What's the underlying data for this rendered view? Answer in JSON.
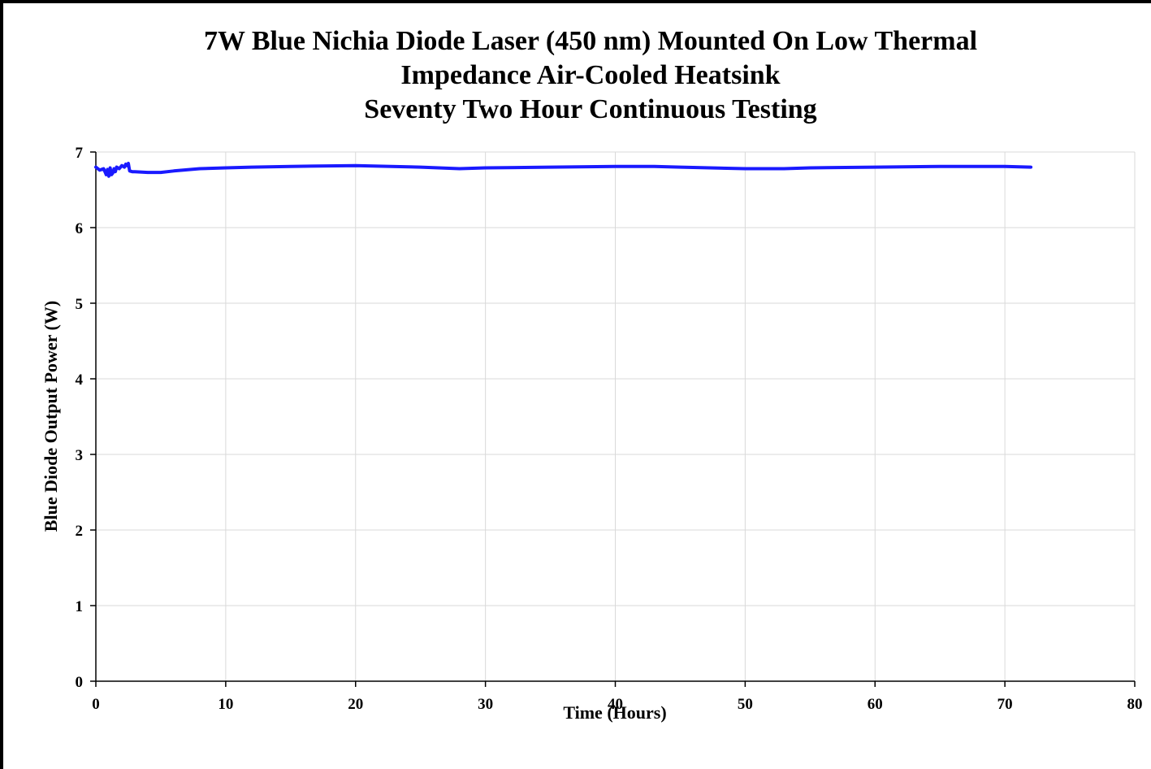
{
  "chart_data": {
    "type": "line",
    "title_lines": [
      "7W Blue Nichia Diode Laser (450 nm) Mounted On Low Thermal",
      "Impedance Air-Cooled Heatsink",
      "Seventy Two Hour Continuous Testing"
    ],
    "xlabel": "Time (Hours)",
    "ylabel": "Blue Diode Output Power (W)",
    "xlim": [
      0,
      80
    ],
    "ylim": [
      0,
      7
    ],
    "x_ticks": [
      "0",
      "10",
      "20",
      "30",
      "40",
      "50",
      "60",
      "70",
      "80"
    ],
    "y_ticks": [
      "0",
      "1",
      "2",
      "3",
      "4",
      "5",
      "6",
      "7"
    ],
    "grid": true,
    "line_color": "#1a1aff",
    "series": [
      {
        "x": [
          0,
          0.3,
          0.6,
          0.8,
          0.9,
          1.0,
          1.1,
          1.2,
          1.3,
          1.4,
          1.5,
          1.6,
          1.8,
          2.0,
          2.2,
          2.3,
          2.4,
          2.5,
          2.6,
          2.8,
          3,
          4,
          5,
          6,
          8,
          10,
          12,
          15,
          20,
          25,
          28,
          30,
          35,
          40,
          43,
          45,
          50,
          53,
          55,
          60,
          65,
          70,
          72
        ],
        "y": [
          6.8,
          6.76,
          6.78,
          6.7,
          6.77,
          6.68,
          6.79,
          6.7,
          6.72,
          6.78,
          6.74,
          6.8,
          6.78,
          6.82,
          6.8,
          6.84,
          6.82,
          6.85,
          6.75,
          6.74,
          6.74,
          6.73,
          6.73,
          6.75,
          6.78,
          6.79,
          6.8,
          6.81,
          6.82,
          6.8,
          6.78,
          6.79,
          6.8,
          6.81,
          6.81,
          6.8,
          6.78,
          6.78,
          6.79,
          6.8,
          6.81,
          6.81,
          6.8
        ]
      }
    ]
  }
}
